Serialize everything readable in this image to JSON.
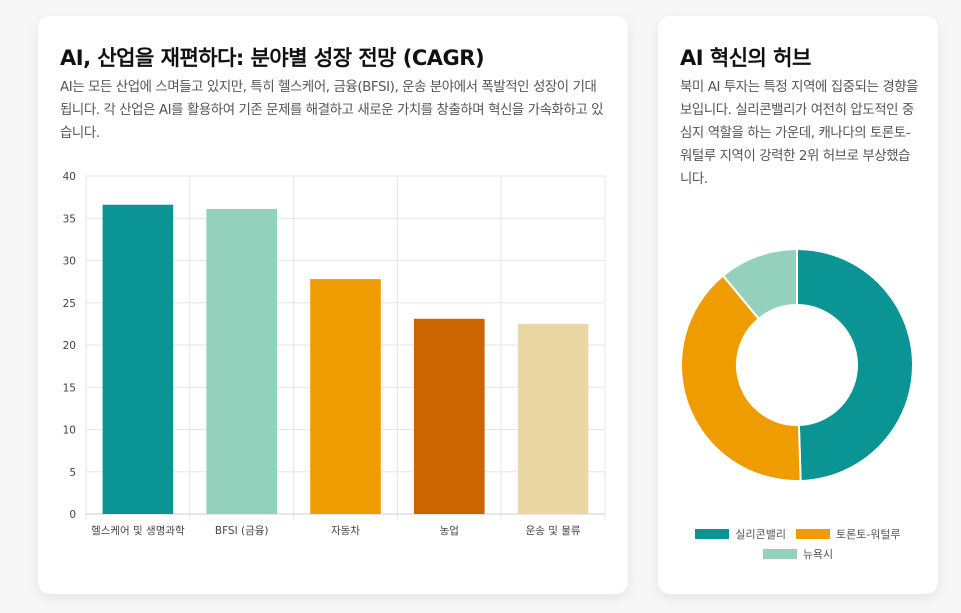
{
  "left_card": {
    "title": "AI, 산업을 재편하다: 분야별 성장 전망 (CAGR)",
    "description": "AI는 모든 산업에 스며들고 있지만, 특히 헬스케어, 금융(BFSI), 운송 분야에서 폭발적인 성장이 기대됩니다. 각 산업은 AI를 활용하여 기존 문제를 해결하고 새로운 가치를 창출하며 혁신을 가속화하고 있습니다."
  },
  "right_card": {
    "title": "AI 혁신의 허브",
    "description": "북미 AI 투자는 특정 지역에 집중되는 경향을 보입니다. 실리콘밸리가 여전히 압도적인 중심지 역할을 하는 가운데, 캐나다의 토론토-워털루 지역이 강력한 2위 허브로 부상했습니다."
  },
  "chart_data": [
    {
      "type": "bar",
      "categories": [
        "헬스케어 및 생명과학",
        "BFSI (금융)",
        "자동차",
        "농업",
        "운송 및 물류"
      ],
      "values": [
        36.6,
        36.1,
        27.8,
        23.1,
        22.5
      ],
      "colors": [
        "#0b9494",
        "#94d1bd",
        "#ef9c00",
        "#cc6500",
        "#e9d7a4"
      ],
      "ylim": [
        0,
        40
      ],
      "yticks": [
        0,
        5,
        10,
        15,
        20,
        25,
        30,
        35,
        40
      ],
      "ytick_labels": [
        "0",
        "5",
        "10",
        "15",
        "20",
        "25",
        "30",
        "35",
        "40"
      ],
      "grid": true,
      "legend": "none"
    },
    {
      "type": "pie",
      "donut": true,
      "labels": [
        "실리콘밸리",
        "토론토-워털루",
        "뉴욕시"
      ],
      "values": [
        49.5,
        39.5,
        11
      ],
      "colors": [
        "#0b9494",
        "#ef9c00",
        "#94d1bd"
      ],
      "legend": "bottom"
    }
  ]
}
